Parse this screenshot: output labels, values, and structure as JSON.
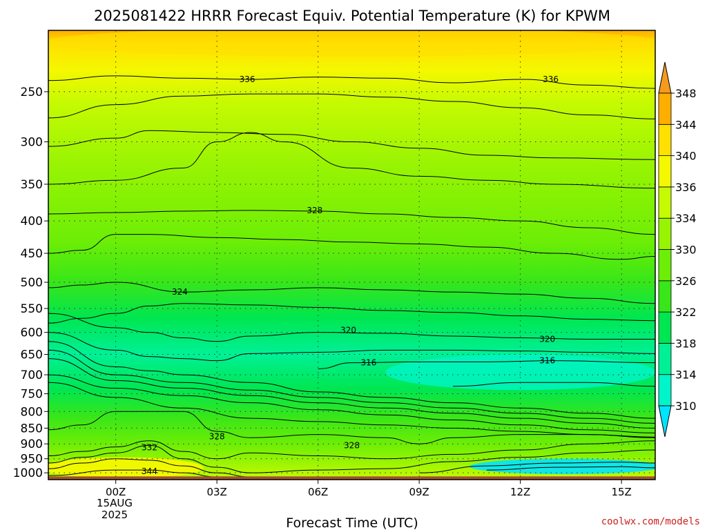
{
  "chart_data": {
    "type": "heatmap",
    "title": "2025081422 HRRR Forecast Equiv. Potential Temperature (K) for KPWM",
    "xlabel": "Forecast Time (UTC)",
    "ylabel": "",
    "x_ticks": [
      "00Z",
      "03Z",
      "06Z",
      "09Z",
      "12Z",
      "15Z"
    ],
    "x_tick_date": [
      "15AUG",
      "2025"
    ],
    "y_ticks": [
      250,
      300,
      350,
      400,
      450,
      500,
      550,
      600,
      650,
      700,
      750,
      800,
      850,
      900,
      950,
      1000
    ],
    "y_scale": "log-pressure",
    "y_range_hpa": [
      1025,
      200
    ],
    "x_range_hours": [
      -2,
      16
    ],
    "grid": true,
    "colorbar": {
      "levels": [
        310,
        314,
        318,
        322,
        326,
        330,
        334,
        336,
        340,
        344,
        348
      ],
      "colors": [
        "#00e4ff",
        "#00f5c8",
        "#00f096",
        "#00e650",
        "#38e619",
        "#6cee06",
        "#98f403",
        "#c6fa02",
        "#f4f800",
        "#ffe000",
        "#ffae00",
        "#f49a1c"
      ],
      "extend": "both"
    },
    "contour_labels": [
      {
        "value": "336",
        "time": 3.9,
        "pressure": 239
      },
      {
        "value": "336",
        "time": 12.9,
        "pressure": 239
      },
      {
        "value": "328",
        "time": 5.9,
        "pressure": 385
      },
      {
        "value": "324",
        "time": 1.9,
        "pressure": 518
      },
      {
        "value": "320",
        "time": 6.9,
        "pressure": 595
      },
      {
        "value": "320",
        "time": 12.8,
        "pressure": 615
      },
      {
        "value": "316",
        "time": 7.5,
        "pressure": 670
      },
      {
        "value": "316",
        "time": 12.8,
        "pressure": 665
      },
      {
        "value": "328",
        "time": 3.0,
        "pressure": 876
      },
      {
        "value": "328",
        "time": 7.0,
        "pressure": 905
      },
      {
        "value": "332",
        "time": 1.0,
        "pressure": 912
      },
      {
        "value": "344",
        "time": 1.0,
        "pressure": 995
      }
    ],
    "contour_lines": [
      {
        "value": 336,
        "points": [
          [
            -2,
            240
          ],
          [
            0,
            236
          ],
          [
            2,
            238
          ],
          [
            4,
            239
          ],
          [
            6,
            237
          ],
          [
            8,
            238
          ],
          [
            10,
            242
          ],
          [
            12,
            239
          ],
          [
            14,
            244
          ],
          [
            16,
            247
          ]
        ]
      },
      {
        "value": 334,
        "points": [
          [
            -2,
            275
          ],
          [
            0,
            262
          ],
          [
            2,
            254
          ],
          [
            4,
            252
          ],
          [
            6,
            252
          ],
          [
            8,
            255
          ],
          [
            10,
            259
          ],
          [
            12,
            265
          ],
          [
            14,
            272
          ],
          [
            16,
            276
          ]
        ]
      },
      {
        "value": 332,
        "points": [
          [
            -2,
            305
          ],
          [
            0,
            296
          ],
          [
            1,
            288
          ],
          [
            3,
            290
          ],
          [
            5,
            292
          ],
          [
            7,
            300
          ],
          [
            9,
            307
          ],
          [
            11,
            315
          ],
          [
            13,
            318
          ],
          [
            16,
            320
          ]
        ]
      },
      {
        "value": 330,
        "points": [
          [
            -2,
            350
          ],
          [
            0,
            345
          ],
          [
            2,
            330
          ],
          [
            3,
            300
          ],
          [
            4,
            290
          ],
          [
            5,
            300
          ],
          [
            7,
            330
          ],
          [
            9,
            340
          ],
          [
            11,
            345
          ],
          [
            13,
            350
          ],
          [
            16,
            355
          ]
        ]
      },
      {
        "value": 328,
        "points": [
          [
            -2,
            390
          ],
          [
            0,
            388
          ],
          [
            2,
            386
          ],
          [
            4,
            385
          ],
          [
            6,
            386
          ],
          [
            8,
            390
          ],
          [
            10,
            395
          ],
          [
            12,
            400
          ],
          [
            14,
            410
          ],
          [
            16,
            420
          ]
        ]
      },
      {
        "value": 326,
        "points": [
          [
            -2,
            450
          ],
          [
            -1,
            445
          ],
          [
            0,
            420
          ],
          [
            1,
            420
          ],
          [
            3,
            425
          ],
          [
            5,
            428
          ],
          [
            7,
            432
          ],
          [
            9,
            435
          ],
          [
            11,
            440
          ],
          [
            13,
            450
          ],
          [
            15,
            460
          ],
          [
            16,
            455
          ]
        ]
      },
      {
        "value": 324,
        "points": [
          [
            -2,
            510
          ],
          [
            -1,
            505
          ],
          [
            0,
            500
          ],
          [
            2,
            518
          ],
          [
            4,
            514
          ],
          [
            6,
            510
          ],
          [
            8,
            514
          ],
          [
            10,
            518
          ],
          [
            12,
            522
          ],
          [
            14,
            530
          ],
          [
            16,
            540
          ]
        ]
      },
      {
        "value": 322,
        "points": [
          [
            -2,
            580
          ],
          [
            -1,
            570
          ],
          [
            0,
            560
          ],
          [
            1,
            545
          ],
          [
            2,
            540
          ],
          [
            4,
            543
          ],
          [
            6,
            548
          ],
          [
            8,
            554
          ],
          [
            10,
            558
          ],
          [
            12,
            565
          ],
          [
            14,
            572
          ],
          [
            16,
            575
          ]
        ]
      },
      {
        "value": 320,
        "points": [
          [
            -2,
            560
          ],
          [
            0,
            590
          ],
          [
            1,
            600
          ],
          [
            2,
            612
          ],
          [
            3,
            620
          ],
          [
            4,
            608
          ],
          [
            6,
            600
          ],
          [
            8,
            602
          ],
          [
            10,
            608
          ],
          [
            12,
            612
          ],
          [
            14,
            615
          ],
          [
            16,
            615
          ]
        ]
      },
      {
        "value": 318,
        "points": [
          [
            -2,
            600
          ],
          [
            0,
            640
          ],
          [
            1,
            655
          ],
          [
            2,
            660
          ],
          [
            3,
            665
          ],
          [
            4,
            648
          ],
          [
            6,
            645
          ],
          [
            8,
            640
          ],
          [
            10,
            640
          ],
          [
            12,
            642
          ],
          [
            14,
            645
          ],
          [
            16,
            648
          ]
        ]
      },
      {
        "value": 316,
        "points": [
          [
            6,
            685
          ],
          [
            7,
            670
          ],
          [
            9,
            668
          ],
          [
            11,
            668
          ],
          [
            13,
            665
          ],
          [
            16,
            670
          ]
        ]
      },
      {
        "value": 314,
        "points": [
          [
            10,
            730
          ],
          [
            12,
            720
          ],
          [
            14,
            720
          ],
          [
            16,
            730
          ]
        ]
      },
      {
        "value": 318,
        "points": [
          [
            -2,
            620
          ],
          [
            0,
            680
          ],
          [
            1,
            690
          ],
          [
            2,
            700
          ],
          [
            4,
            720
          ],
          [
            6,
            745
          ],
          [
            8,
            760
          ],
          [
            10,
            775
          ],
          [
            12,
            790
          ],
          [
            14,
            805
          ],
          [
            16,
            820
          ]
        ]
      },
      {
        "value": 320,
        "points": [
          [
            -2,
            640
          ],
          [
            0,
            700
          ],
          [
            2,
            720
          ],
          [
            4,
            740
          ],
          [
            6,
            760
          ],
          [
            8,
            775
          ],
          [
            10,
            790
          ],
          [
            12,
            805
          ],
          [
            14,
            820
          ],
          [
            16,
            835
          ]
        ]
      },
      {
        "value": 322,
        "points": [
          [
            -2,
            660
          ],
          [
            0,
            715
          ],
          [
            2,
            735
          ],
          [
            4,
            755
          ],
          [
            6,
            775
          ],
          [
            8,
            790
          ],
          [
            10,
            805
          ],
          [
            12,
            820
          ],
          [
            14,
            835
          ],
          [
            16,
            850
          ]
        ]
      },
      {
        "value": 324,
        "points": [
          [
            -2,
            700
          ],
          [
            0,
            735
          ],
          [
            2,
            755
          ],
          [
            4,
            775
          ],
          [
            6,
            795
          ],
          [
            8,
            810
          ],
          [
            10,
            825
          ],
          [
            12,
            840
          ],
          [
            14,
            855
          ],
          [
            16,
            865
          ]
        ]
      },
      {
        "value": 326,
        "points": [
          [
            -2,
            720
          ],
          [
            0,
            760
          ],
          [
            2,
            790
          ],
          [
            4,
            820
          ],
          [
            6,
            830
          ],
          [
            8,
            840
          ],
          [
            10,
            850
          ],
          [
            12,
            860
          ],
          [
            14,
            870
          ],
          [
            16,
            880
          ]
        ]
      },
      {
        "value": 328,
        "points": [
          [
            -2,
            855
          ],
          [
            -1,
            840
          ],
          [
            0,
            800
          ],
          [
            2,
            800
          ],
          [
            3,
            860
          ],
          [
            4,
            880
          ],
          [
            6,
            870
          ],
          [
            8,
            880
          ],
          [
            9,
            900
          ],
          [
            10,
            880
          ],
          [
            12,
            870
          ],
          [
            14,
            870
          ],
          [
            16,
            878
          ]
        ]
      },
      {
        "value": 330,
        "points": [
          [
            -2,
            940
          ],
          [
            -1,
            925
          ],
          [
            0,
            910
          ],
          [
            1,
            890
          ],
          [
            2,
            925
          ],
          [
            3,
            950
          ],
          [
            4,
            930
          ],
          [
            6,
            940
          ],
          [
            8,
            950
          ],
          [
            10,
            935
          ],
          [
            12,
            920
          ],
          [
            14,
            900
          ],
          [
            16,
            890
          ]
        ]
      },
      {
        "value": 332,
        "points": [
          [
            -2,
            965
          ],
          [
            -1,
            945
          ],
          [
            0,
            930
          ],
          [
            1,
            905
          ],
          [
            2,
            950
          ],
          [
            3,
            980
          ],
          [
            4,
            1000
          ],
          [
            6,
            990
          ],
          [
            8,
            985
          ],
          [
            10,
            960
          ],
          [
            12,
            945
          ],
          [
            14,
            930
          ],
          [
            16,
            920
          ]
        ]
      },
      {
        "value": 340,
        "points": [
          [
            -2,
            985
          ],
          [
            -1,
            965
          ],
          [
            0,
            950
          ],
          [
            1,
            955
          ],
          [
            2,
            975
          ],
          [
            3,
            1000
          ],
          [
            4,
            1015
          ]
        ]
      },
      {
        "value": 344,
        "points": [
          [
            -2,
            1010
          ],
          [
            0,
            990
          ],
          [
            1,
            990
          ],
          [
            2,
            1000
          ],
          [
            3,
            1015
          ]
        ]
      },
      {
        "value": 314,
        "points": [
          [
            9,
            1000
          ],
          [
            11,
            975
          ],
          [
            13,
            965
          ],
          [
            15,
            962
          ],
          [
            16,
            965
          ]
        ]
      },
      {
        "value": 312,
        "points": [
          [
            11,
            990
          ],
          [
            13,
            980
          ],
          [
            15,
            978
          ],
          [
            16,
            982
          ]
        ]
      }
    ],
    "surface": {
      "color": "#a0522d",
      "pressure_top": 1013
    }
  },
  "credit": "coolwx.com/models"
}
